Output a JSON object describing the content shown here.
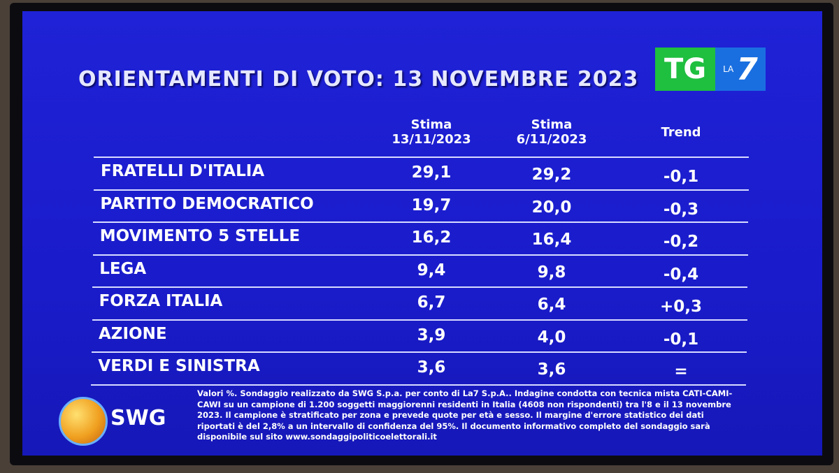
{
  "header": {
    "title": "ORIENTAMENTI DI VOTO: 13 NOVEMBRE 2023"
  },
  "logo": {
    "tg": "TG",
    "la": "LA",
    "seven": "7"
  },
  "table": {
    "columns": [
      "Stima\n13/11/2023",
      "Stima\n6/11/2023",
      "Trend"
    ],
    "rows": [
      [
        "FRATELLI D'ITALIA",
        "29,1",
        "29,2",
        "-0,1"
      ],
      [
        "PARTITO DEMOCRATICO",
        "19,7",
        "20,0",
        "-0,3"
      ],
      [
        "MOVIMENTO 5 STELLE",
        "16,2",
        "16,4",
        "-0,2"
      ],
      [
        "LEGA",
        "9,4",
        "9,8",
        "-0,4"
      ],
      [
        "FORZA ITALIA",
        "6,7",
        "6,4",
        "+0,3"
      ],
      [
        "AZIONE",
        "3,9",
        "4,0",
        "-0,1"
      ],
      [
        "VERDI E SINISTRA",
        "3,6",
        "3,6",
        "="
      ]
    ]
  },
  "footer": {
    "brand": "SWG",
    "note": "Valori %. Sondaggio realizzato da SWG S.p.a. per conto di La7 S.p.A.. Indagine condotta con tecnica mista CATI-CAMI-CAWI su un campione di 1.200 soggetti maggiorenni residenti in Italia (4608 non rispondenti) tra l'8 e il 13 novembre 2023. Il campione è stratificato per zona e prevede quote per età e sesso. Il margine d'errore statistico dei dati riportati è del 2,8% a un intervallo di confidenza del 95%. Il documento informativo completo del sondaggio sarà disponibile sul sito www.sondaggipoliticoelettorali.it"
  }
}
